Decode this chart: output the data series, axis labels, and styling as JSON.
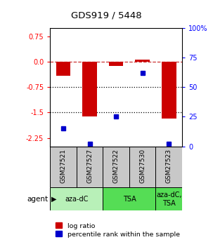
{
  "title": "GDS919 / 5448",
  "samples": [
    "GSM27521",
    "GSM27527",
    "GSM27522",
    "GSM27530",
    "GSM27523"
  ],
  "log_ratios": [
    -0.42,
    -1.62,
    -0.12,
    0.07,
    -1.68
  ],
  "percentile_ranks": [
    15,
    2,
    25,
    62,
    2
  ],
  "ylim_left": [
    -2.5,
    1.0
  ],
  "yticks_left": [
    0.75,
    0.0,
    -0.75,
    -1.5,
    -2.25
  ],
  "yticks_right": [
    100,
    75,
    50,
    25,
    0
  ],
  "hlines_dashed": [
    0.0
  ],
  "hlines_dotted": [
    -0.75,
    -1.5
  ],
  "bar_color": "#cc0000",
  "dot_color": "#0000cc",
  "sample_box_color": "#c8c8c8",
  "agent_groups": [
    {
      "label": "aza-dC",
      "start": 0,
      "end": 2,
      "color": "#b8f0b8"
    },
    {
      "label": "TSA",
      "start": 2,
      "end": 4,
      "color": "#55dd55"
    },
    {
      "label": "aza-dC,\nTSA",
      "start": 4,
      "end": 5,
      "color": "#55dd55"
    }
  ],
  "legend_labels": [
    "log ratio",
    "percentile rank within the sample"
  ]
}
